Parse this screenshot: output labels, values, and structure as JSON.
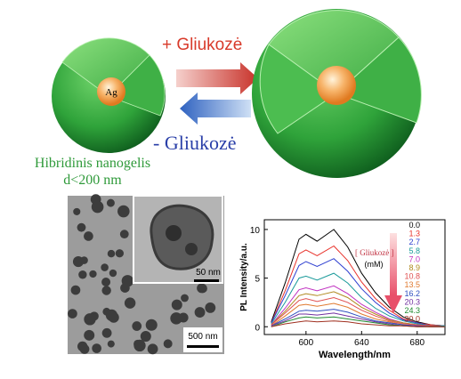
{
  "diagram": {
    "core_label": "Ag",
    "add_label": "+ Gliukozė",
    "remove_label": "- Gliukozė",
    "caption_line1": "Hibridinis nanogelis",
    "caption_line2": "d<200 nm"
  },
  "micrograph": {
    "scale_inset": "50 nm",
    "scale_large": "500 nm"
  },
  "chart_data": {
    "type": "line",
    "x_label": "Wavelength/nm",
    "y_label": "PL Intensity/a.u.",
    "legend_title": "[ Gliukozė ]",
    "legend_unit": "(mM)",
    "xlim": [
      570,
      700
    ],
    "xticks": [
      600,
      640,
      680
    ],
    "ylim": [
      -0.8,
      11
    ],
    "yticks": [
      0,
      5,
      10
    ],
    "x": [
      575,
      585,
      595,
      600,
      608,
      620,
      630,
      640,
      650,
      660,
      670,
      680,
      690,
      700
    ],
    "series": [
      {
        "name": "0.0",
        "color": "#000000",
        "values": [
          0.5,
          4.5,
          9,
          9.5,
          8.8,
          10,
          8.2,
          5.5,
          3.5,
          2,
          1,
          0.5,
          0.2,
          0.1
        ]
      },
      {
        "name": "1.3",
        "color": "#e8312a",
        "values": [
          0.4,
          3.7,
          7.5,
          7.9,
          7.3,
          8.3,
          6.8,
          4.6,
          2.9,
          1.7,
          0.8,
          0.4,
          0.2,
          0.1
        ]
      },
      {
        "name": "2.7",
        "color": "#2e3fd0",
        "values": [
          0.4,
          3.2,
          6.3,
          6.7,
          6.2,
          7,
          5.7,
          3.9,
          2.5,
          1.4,
          0.7,
          0.4,
          0.1,
          0.1
        ]
      },
      {
        "name": "5.8",
        "color": "#1a9a9a",
        "values": [
          0.3,
          2.5,
          5,
          5.2,
          4.8,
          5.5,
          4.5,
          3,
          1.9,
          1.1,
          0.6,
          0.3,
          0.1,
          0.1
        ]
      },
      {
        "name": "7.0",
        "color": "#c030c0",
        "values": [
          0.2,
          1.9,
          3.8,
          4,
          3.7,
          4.2,
          3.4,
          2.3,
          1.5,
          0.8,
          0.4,
          0.2,
          0.1,
          0
        ]
      },
      {
        "name": "8.9",
        "color": "#b08a20",
        "values": [
          0.2,
          1.6,
          3.2,
          3.4,
          3.2,
          3.6,
          3,
          2,
          1.3,
          0.7,
          0.4,
          0.2,
          0.1,
          0
        ]
      },
      {
        "name": "10.8",
        "color": "#e05050",
        "values": [
          0.2,
          1.4,
          2.7,
          2.9,
          2.6,
          3,
          2.5,
          1.7,
          1.1,
          0.6,
          0.3,
          0.2,
          0.1,
          0
        ]
      },
      {
        "name": "13.5",
        "color": "#e07a30",
        "values": [
          0.1,
          1.1,
          2.2,
          2.3,
          2.1,
          2.4,
          2,
          1.3,
          0.8,
          0.5,
          0.2,
          0.1,
          0,
          0
        ]
      },
      {
        "name": "16.2",
        "color": "#3050c0",
        "values": [
          0.1,
          0.8,
          1.6,
          1.7,
          1.6,
          1.8,
          1.5,
          1,
          0.6,
          0.4,
          0.2,
          0.1,
          0,
          0
        ]
      },
      {
        "name": "20.3",
        "color": "#7030a0",
        "values": [
          0.1,
          0.6,
          1.3,
          1.3,
          1.2,
          1.4,
          1.1,
          0.8,
          0.5,
          0.3,
          0.1,
          0.1,
          0,
          0
        ]
      },
      {
        "name": "24.3",
        "color": "#208a30",
        "values": [
          0,
          0.5,
          0.9,
          1,
          0.9,
          1,
          0.8,
          0.6,
          0.4,
          0.2,
          0.1,
          0,
          0,
          0
        ]
      },
      {
        "name": "30.0",
        "color": "#a03020",
        "values": [
          0,
          0.3,
          0.5,
          0.6,
          0.5,
          0.6,
          0.5,
          0.3,
          0.2,
          0.1,
          0.1,
          0,
          0,
          0
        ]
      }
    ]
  }
}
